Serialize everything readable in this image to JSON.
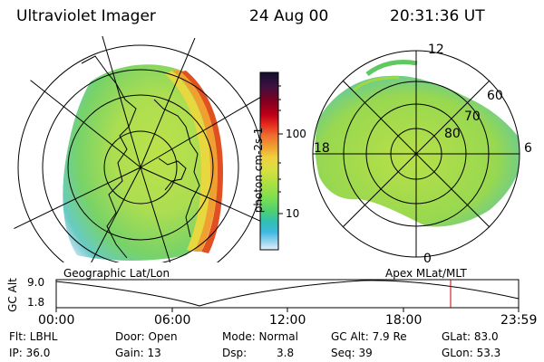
{
  "header": {
    "instrument": "Ultraviolet Imager",
    "date": "24 Aug 00",
    "time": "20:31:36 UT"
  },
  "geographic_panel": {
    "label": "Geographic Lat/Lon"
  },
  "apex_panel": {
    "label": "Apex MLat/MLT",
    "mlt_labels": [
      "12",
      "18",
      "6",
      "0"
    ],
    "mlat_labels": [
      "60",
      "70",
      "80"
    ]
  },
  "colorbar": {
    "unit_label": "photon cm-2s-1",
    "ticks": [
      "100",
      "10"
    ],
    "colors": [
      "#101030",
      "#401040",
      "#800020",
      "#c00018",
      "#e83020",
      "#f07030",
      "#f0a030",
      "#f0d040",
      "#d8e040",
      "#b0e040",
      "#80e050",
      "#50d070",
      "#30c0b0",
      "#40b8e0",
      "#a0d8f0",
      "#e8f0f8"
    ]
  },
  "gc_alt_plot": {
    "ylabel": "GC Alt",
    "y_ticks": [
      "9.0",
      "1.8"
    ],
    "x_ticks": [
      "00:00",
      "06:00",
      "12:00",
      "18:00",
      "23:59"
    ],
    "marker_color": "#cc0000"
  },
  "status": {
    "flt": "Flt: LBHL",
    "ip": "IP: 36.0",
    "door": "Door: Open",
    "gain": "Gain: 13",
    "mode": "Mode: Normal",
    "dsp_label": "Dsp:",
    "dsp_value": "3.8",
    "gc_alt": "GC Alt: 7.9 Re",
    "seq": "Seq: 39",
    "glat": "GLat: 83.0",
    "glon": "GLon: 53.3"
  }
}
